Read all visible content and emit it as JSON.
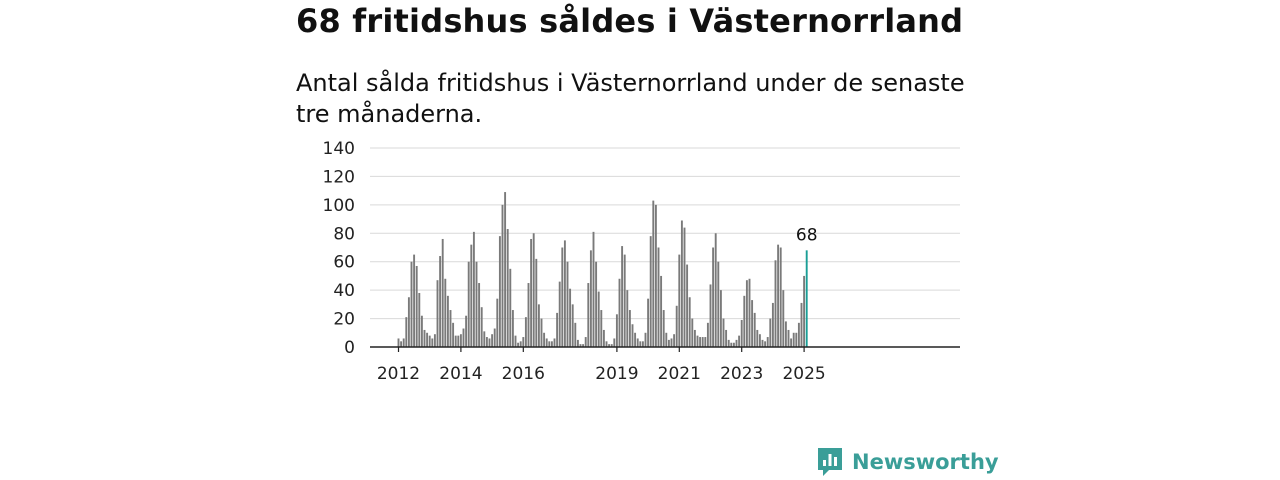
{
  "title": "68 fritidshus såldes i Västernorrland",
  "subtitle": "Antal sålda fritidshus i Västernorrland under de senaste tre månaderna.",
  "brand": {
    "name": "Newsworthy",
    "icon": "newsworthy-logo-icon"
  },
  "colors": {
    "bar": "#7a7a7a",
    "highlight": "#1a9e96",
    "grid": "#d9d9d9",
    "axis": "#222222",
    "brand": "#3a9e98"
  },
  "chart_data": {
    "type": "bar",
    "start": "2012-01",
    "interval": "month",
    "ylim": [
      0,
      140
    ],
    "yticks": [
      0,
      20,
      40,
      60,
      80,
      100,
      120,
      140
    ],
    "xtick_labels": [
      "2012",
      "2014",
      "2016",
      "2019",
      "2021",
      "2023",
      "2025"
    ],
    "highlight_label": "68",
    "grid": true,
    "values": [
      6,
      4,
      6,
      21,
      35,
      60,
      65,
      57,
      38,
      22,
      12,
      10,
      8,
      6,
      9,
      47,
      64,
      76,
      48,
      36,
      26,
      17,
      8,
      8,
      9,
      13,
      22,
      60,
      72,
      81,
      60,
      45,
      28,
      11,
      7,
      6,
      9,
      13,
      34,
      78,
      100,
      109,
      83,
      55,
      26,
      8,
      3,
      4,
      7,
      21,
      45,
      76,
      80,
      62,
      30,
      20,
      10,
      6,
      4,
      4,
      6,
      24,
      46,
      70,
      75,
      60,
      41,
      30,
      17,
      5,
      2,
      2,
      7,
      45,
      68,
      81,
      60,
      39,
      26,
      12,
      4,
      2,
      2,
      6,
      23,
      48,
      71,
      65,
      40,
      26,
      16,
      10,
      6,
      4,
      4,
      10,
      34,
      78,
      103,
      100,
      70,
      50,
      26,
      10,
      5,
      6,
      9,
      29,
      65,
      89,
      84,
      58,
      35,
      20,
      12,
      8,
      7,
      7,
      7,
      17,
      44,
      70,
      80,
      60,
      40,
      20,
      12,
      5,
      3,
      3,
      5,
      8,
      19,
      36,
      47,
      48,
      33,
      24,
      12,
      9,
      5,
      4,
      7,
      20,
      31,
      61,
      72,
      70,
      40,
      18,
      12,
      6,
      10,
      10,
      17,
      31,
      50,
      68
    ]
  }
}
